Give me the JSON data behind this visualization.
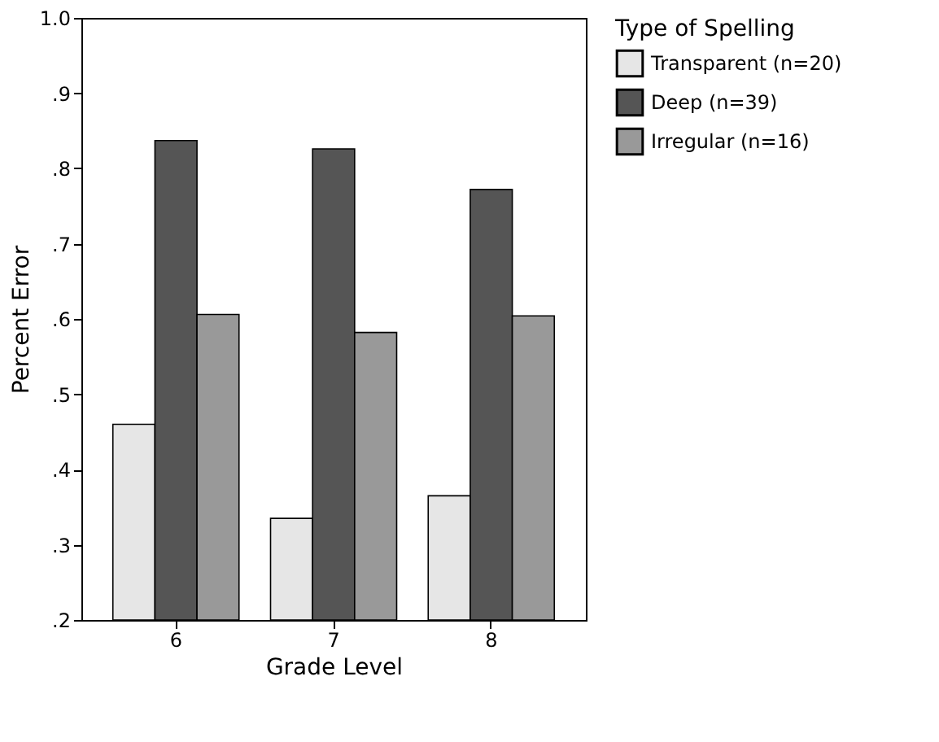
{
  "chart_data": {
    "type": "bar",
    "xlabel": "Grade Level",
    "ylabel": "Percent Error",
    "legend_title": "Type of Spelling",
    "categories": [
      "6",
      "7",
      "8"
    ],
    "series": [
      {
        "name": "Transparent (n=20)",
        "color": "#e6e6e6",
        "values": [
          0.46,
          0.335,
          0.365
        ]
      },
      {
        "name": "Deep (n=39)",
        "color": "#555555",
        "values": [
          0.837,
          0.826,
          0.772
        ]
      },
      {
        "name": "Irregular (n=16)",
        "color": "#999999",
        "values": [
          0.606,
          0.582,
          0.604
        ]
      }
    ],
    "ylim": [
      0.2,
      1.0
    ],
    "yticks": [
      {
        "value": 0.2,
        "label": ".2"
      },
      {
        "value": 0.3,
        "label": ".3"
      },
      {
        "value": 0.4,
        "label": ".4"
      },
      {
        "value": 0.5,
        "label": ".5"
      },
      {
        "value": 0.6,
        "label": ".6"
      },
      {
        "value": 0.7,
        "label": ".7"
      },
      {
        "value": 0.8,
        "label": ".8"
      },
      {
        "value": 0.9,
        "label": ".9"
      },
      {
        "value": 1.0,
        "label": "1.0"
      }
    ],
    "grid": false,
    "legend": "right"
  }
}
